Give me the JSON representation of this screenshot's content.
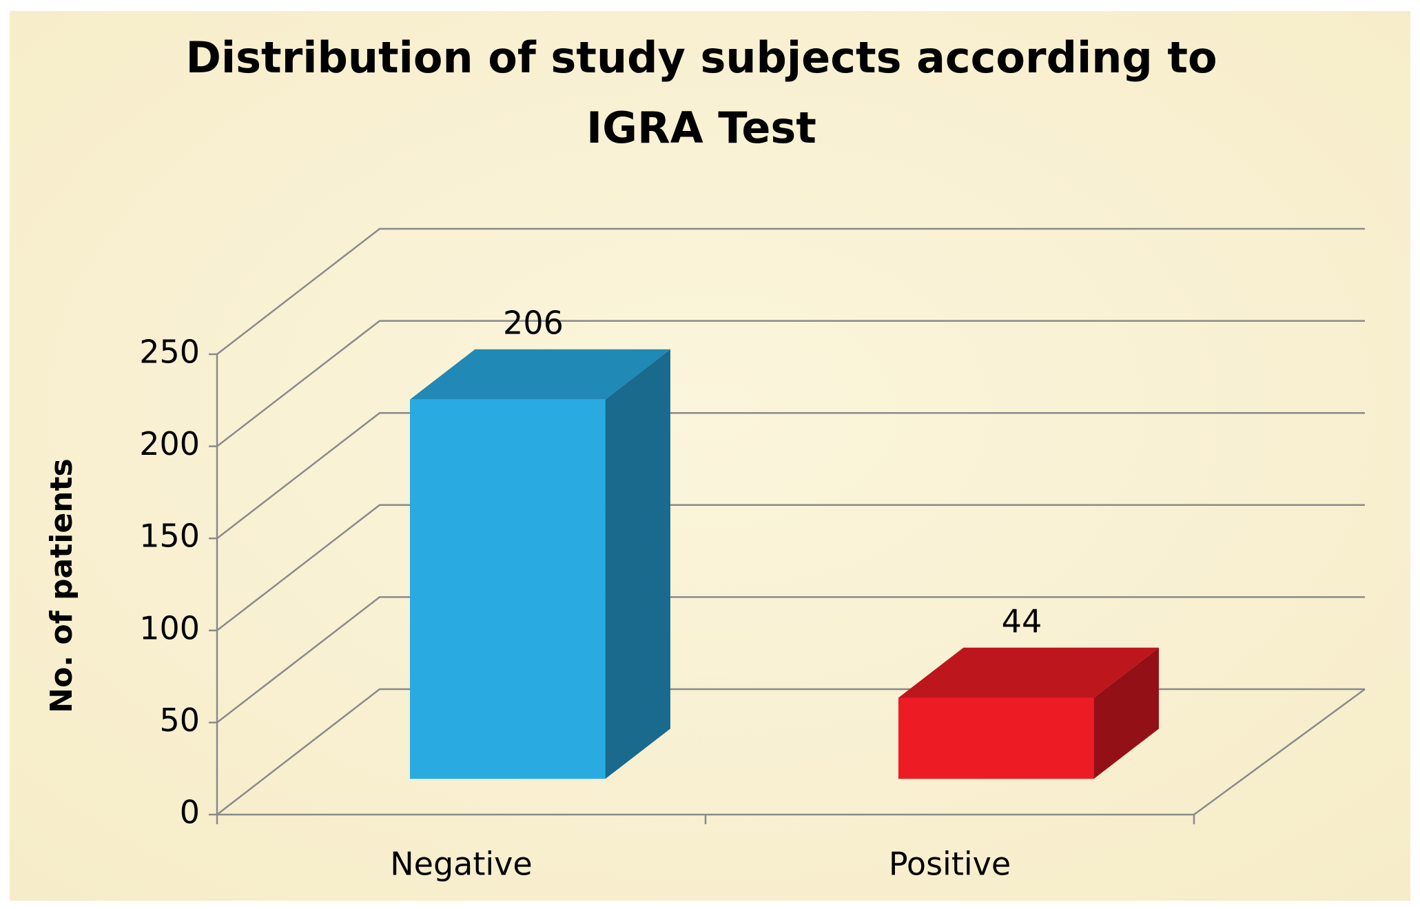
{
  "chart_data": {
    "type": "bar3d",
    "title": [
      "Distribution of study subjects according to",
      "IGRA Test"
    ],
    "y_label": "No. of patients",
    "categories": [
      "Negative",
      "Positive"
    ],
    "values": [
      206,
      44
    ],
    "colors": [
      "#29abe2",
      "#ed1c24"
    ],
    "ylim": [
      0,
      250
    ],
    "yticks": [
      0,
      50,
      100,
      150,
      200,
      250
    ],
    "grid": true
  }
}
